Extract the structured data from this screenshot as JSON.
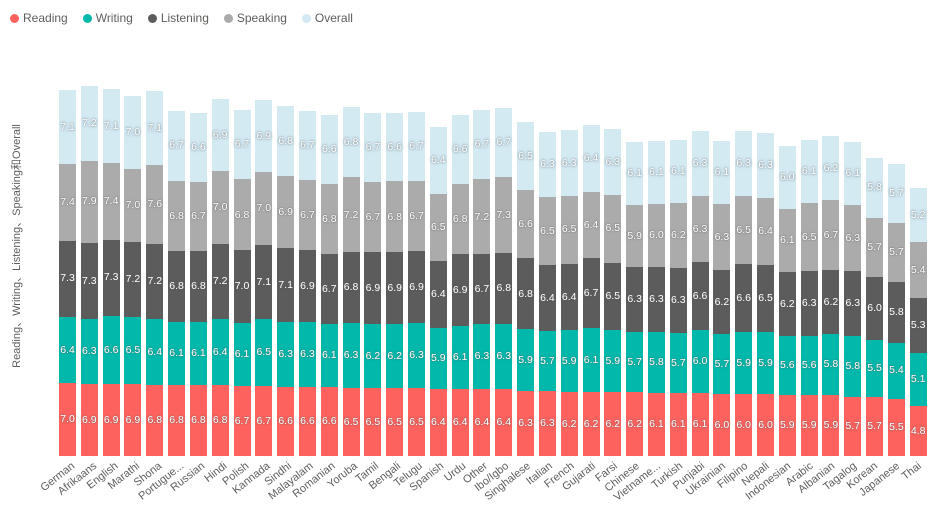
{
  "colors": {
    "background": "#FFFFFF",
    "text": "#605E5C",
    "value_label": "#FFFFFF"
  },
  "chart_data": {
    "type": "bar",
    "stacked": true,
    "title": "",
    "xlabel": "",
    "ylabel": "Reading、Writing、Listening、Speaking和Overall",
    "legend_position": "top-left",
    "grid": false,
    "value_axis_visible": false,
    "value_labels": "inside-center, one decimal, white",
    "categories": [
      "German",
      "Afrikaans",
      "English",
      "Marathi",
      "Shona",
      "Portugue...",
      "Russian",
      "Hindi",
      "Polish",
      "Kannada",
      "Sindhi",
      "Malayalam",
      "Romanian",
      "Yoruba",
      "Tamil",
      "Bengali",
      "Telugu",
      "Spanish",
      "Urdu",
      "Other",
      "Ibo/Igbo",
      "Singhalese",
      "Italian",
      "French",
      "Gujarati",
      "Farsi",
      "Chinese",
      "Vietname...",
      "Turkish",
      "Punjabi",
      "Ukrainian",
      "Filipino",
      "Nepali",
      "Indonesian",
      "Arabic",
      "Albanian",
      "Tagalog",
      "Korean",
      "Japanese",
      "Thai"
    ],
    "series": [
      {
        "name": "Reading",
        "color": "#FD625E",
        "values": [
          7.0,
          6.9,
          6.9,
          6.9,
          6.8,
          6.8,
          6.8,
          6.8,
          6.7,
          6.7,
          6.6,
          6.6,
          6.6,
          6.5,
          6.5,
          6.5,
          6.5,
          6.4,
          6.4,
          6.4,
          6.4,
          6.3,
          6.3,
          6.2,
          6.2,
          6.2,
          6.2,
          6.1,
          6.1,
          6.1,
          6.0,
          6.0,
          6.0,
          5.9,
          5.9,
          5.9,
          5.7,
          5.7,
          5.5,
          4.8
        ]
      },
      {
        "name": "Writing",
        "color": "#01B8AA",
        "values": [
          6.4,
          6.3,
          6.6,
          6.5,
          6.4,
          6.1,
          6.1,
          6.4,
          6.1,
          6.5,
          6.3,
          6.3,
          6.1,
          6.3,
          6.2,
          6.2,
          6.3,
          5.9,
          6.1,
          6.3,
          6.3,
          5.9,
          5.7,
          5.9,
          6.1,
          5.9,
          5.7,
          5.8,
          5.7,
          6.0,
          5.7,
          5.9,
          5.9,
          5.6,
          5.6,
          5.8,
          5.8,
          5.5,
          5.4,
          5.1
        ]
      },
      {
        "name": "Listening",
        "color": "#5C5C5C",
        "values": [
          7.3,
          7.3,
          7.3,
          7.2,
          7.2,
          6.8,
          6.8,
          7.2,
          7.0,
          7.1,
          7.1,
          6.9,
          6.7,
          6.8,
          6.9,
          6.9,
          6.9,
          6.4,
          6.9,
          6.7,
          6.8,
          6.8,
          6.4,
          6.4,
          6.7,
          6.5,
          6.3,
          6.3,
          6.3,
          6.6,
          6.2,
          6.6,
          6.5,
          6.2,
          6.3,
          6.2,
          6.3,
          6.0,
          5.8,
          5.3
        ]
      },
      {
        "name": "Speaking",
        "color": "#ABABAB",
        "values": [
          7.4,
          7.9,
          7.4,
          7.0,
          7.6,
          6.8,
          6.7,
          7.0,
          6.8,
          7.0,
          6.9,
          6.7,
          6.8,
          7.2,
          6.7,
          6.8,
          6.7,
          6.5,
          6.8,
          7.2,
          7.3,
          6.6,
          6.5,
          6.5,
          6.4,
          6.5,
          5.9,
          6.0,
          6.2,
          6.3,
          6.3,
          6.5,
          6.4,
          6.1,
          6.5,
          6.7,
          6.3,
          5.7,
          5.7,
          5.4
        ]
      },
      {
        "name": "Overall",
        "color": "#D4EAF3",
        "values": [
          7.1,
          7.2,
          7.1,
          7.0,
          7.1,
          6.7,
          6.6,
          6.9,
          6.7,
          6.9,
          6.8,
          6.7,
          6.6,
          6.8,
          6.7,
          6.6,
          6.7,
          6.4,
          6.6,
          6.7,
          6.7,
          6.5,
          6.3,
          6.3,
          6.4,
          6.3,
          6.1,
          6.1,
          6.1,
          6.3,
          6.1,
          6.3,
          6.3,
          6.0,
          6.1,
          6.2,
          6.1,
          5.8,
          5.7,
          5.2
        ]
      }
    ]
  }
}
